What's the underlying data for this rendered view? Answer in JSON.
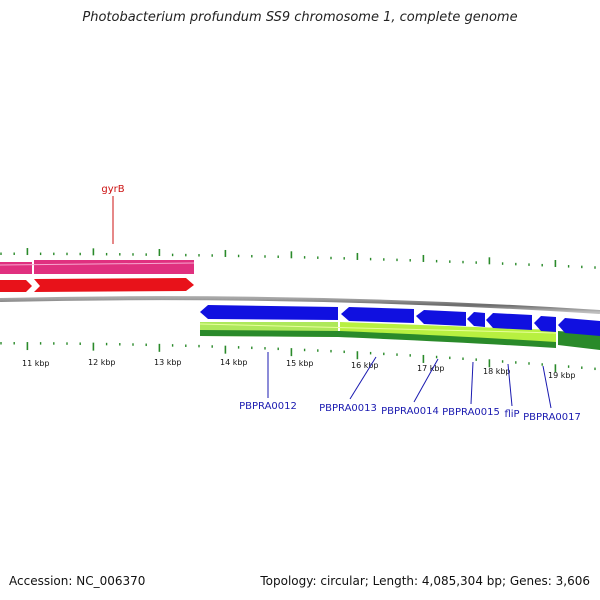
{
  "title": "Photobacterium profundum SS9 chromosome 1, complete genome",
  "footer": {
    "accession": "Accession: NC_006370",
    "summary": "Topology: circular; Length: 4,085,304 bp; Genes: 3,606"
  },
  "colors": {
    "background": "#ffffff",
    "backbone": "#7a7a7a",
    "ticks": "#2a8a2a",
    "forward_misc": "#e0307f",
    "forward_cds": "#e8121a",
    "reverse_cds": "#1010e0",
    "reverse_gene_light": "#aee85a",
    "reverse_gene_dark": "#2a8a2a",
    "label_blue": "#1a1ab0",
    "label_red": "#cc1111"
  },
  "scale": {
    "unit": "kbp",
    "labels": [
      "11 kbp",
      "12 kbp",
      "13 kbp",
      "14 kbp",
      "15 kbp",
      "16 kbp",
      "17 kbp",
      "18 kbp",
      "19 kbp"
    ]
  },
  "genes": [
    {
      "name": "gyrB",
      "strand": "forward",
      "color": "red"
    },
    {
      "name": "PBPRA0012",
      "strand": "reverse",
      "color": "blue"
    },
    {
      "name": "PBPRA0013",
      "strand": "reverse",
      "color": "blue"
    },
    {
      "name": "PBPRA0014",
      "strand": "reverse",
      "color": "blue"
    },
    {
      "name": "PBPRA0015",
      "strand": "reverse",
      "color": "blue"
    },
    {
      "name": "fliP",
      "strand": "reverse",
      "color": "blue"
    },
    {
      "name": "PBPRA0017",
      "strand": "reverse",
      "color": "blue"
    }
  ]
}
